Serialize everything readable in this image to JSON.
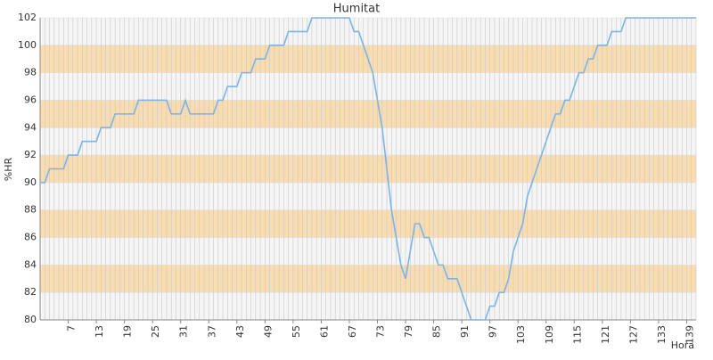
{
  "chart_data": {
    "type": "line",
    "title": "Humitat",
    "x_label": "Hora",
    "y_label": "%HR",
    "x": [
      1,
      2,
      3,
      4,
      5,
      6,
      7,
      8,
      9,
      10,
      11,
      12,
      13,
      14,
      15,
      16,
      17,
      18,
      19,
      20,
      21,
      22,
      23,
      24,
      25,
      26,
      27,
      28,
      29,
      30,
      31,
      32,
      33,
      34,
      35,
      36,
      37,
      38,
      39,
      40,
      41,
      42,
      43,
      44,
      45,
      46,
      47,
      48,
      49,
      50,
      51,
      52,
      53,
      54,
      55,
      56,
      57,
      58,
      59,
      60,
      61,
      62,
      63,
      64,
      65,
      66,
      67,
      68,
      69,
      70,
      71,
      72,
      73,
      74,
      75,
      76,
      77,
      78,
      79,
      80,
      81,
      82,
      83,
      84,
      85,
      86,
      87,
      88,
      89,
      90,
      91,
      92,
      93,
      94,
      95,
      96,
      97,
      98,
      99,
      100,
      101,
      102,
      103,
      104,
      105,
      106,
      107,
      108,
      109,
      110,
      111,
      112,
      113,
      114,
      115,
      116,
      117,
      118,
      119,
      120,
      121,
      122,
      123,
      124,
      125,
      126,
      127,
      128,
      129,
      130,
      131,
      132,
      133,
      134,
      135,
      136,
      137,
      138,
      139,
      140,
      141
    ],
    "series": [
      {
        "name": "%HR",
        "color": "#7ab4e8",
        "values": [
          90,
          90,
          91,
          91,
          91,
          91,
          92,
          92,
          92,
          93,
          93,
          93,
          93,
          94,
          94,
          94,
          95,
          95,
          95,
          95,
          95,
          96,
          96,
          96,
          96,
          96,
          96,
          96,
          95,
          95,
          95,
          96,
          95,
          95,
          95,
          95,
          95,
          95,
          96,
          96,
          97,
          97,
          97,
          98,
          98,
          98,
          99,
          99,
          99,
          100,
          100,
          100,
          100,
          101,
          101,
          101,
          101,
          101,
          102,
          102,
          102,
          102,
          102,
          102,
          102,
          102,
          102,
          101,
          101,
          100,
          99,
          98,
          96,
          94,
          91,
          88,
          86,
          84,
          83,
          85,
          87,
          87,
          86,
          86,
          85,
          84,
          84,
          83,
          83,
          83,
          82,
          81,
          80,
          80,
          80,
          80,
          81,
          81,
          82,
          82,
          83,
          85,
          86,
          87,
          89,
          90,
          91,
          92,
          93,
          94,
          95,
          95,
          96,
          96,
          97,
          98,
          98,
          99,
          99,
          100,
          100,
          100,
          101,
          101,
          101,
          102,
          102,
          102,
          102,
          102,
          102,
          102,
          102,
          102,
          102,
          102,
          102,
          102,
          102,
          102,
          102
        ]
      }
    ],
    "xlim": [
      1,
      141
    ],
    "xticks": [
      7,
      13,
      19,
      25,
      31,
      37,
      43,
      49,
      55,
      61,
      67,
      73,
      79,
      85,
      91,
      97,
      103,
      109,
      115,
      121,
      127,
      133,
      139
    ],
    "ylim": [
      80,
      102
    ],
    "yticks": [
      80,
      82,
      84,
      86,
      88,
      90,
      92,
      94,
      96,
      98,
      100,
      102
    ],
    "band_colors": [
      "#f5f5f5",
      "#fadcb1"
    ]
  }
}
